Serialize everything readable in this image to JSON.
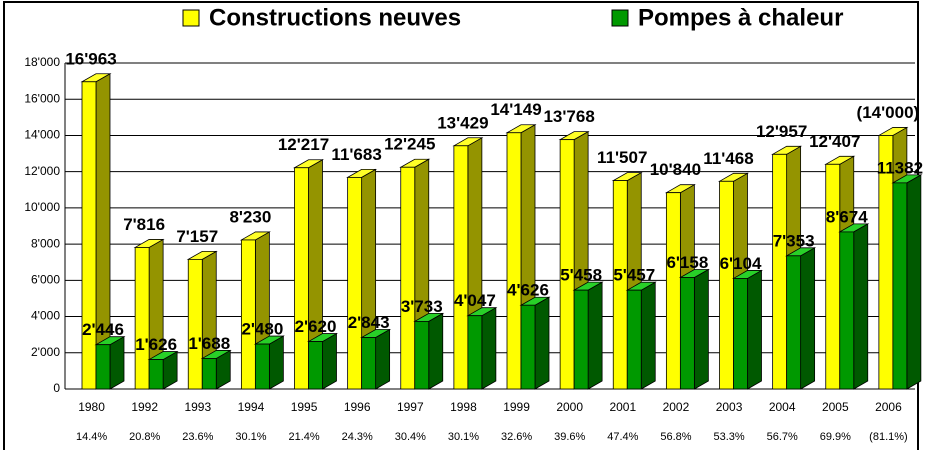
{
  "chart_data": {
    "type": "bar3d",
    "categories": [
      "1980",
      "1992",
      "1993",
      "1994",
      "1995",
      "1996",
      "1997",
      "1998",
      "1999",
      "2000",
      "2001",
      "2002",
      "2003",
      "2004",
      "2005",
      "2006"
    ],
    "shares": [
      "14.4%",
      "20.8%",
      "23.6%",
      "30.1%",
      "21.4%",
      "24.3%",
      "30.4%",
      "30.1%",
      "32.6%",
      "39.6%",
      "47.4%",
      "56.8%",
      "53.3%",
      "56.7%",
      "69.9%",
      "(81.1%)"
    ],
    "series": [
      {
        "name": "Constructions neuves",
        "color": "#ffff00",
        "values": [
          16963,
          7816,
          7157,
          8230,
          12217,
          11683,
          12245,
          13429,
          14149,
          13768,
          11507,
          10840,
          11468,
          12957,
          12407,
          14000
        ],
        "value_labels": [
          "16'963",
          "7'816",
          "7'157",
          "8'230",
          "12'217",
          "11'683",
          "12'245",
          "13'429",
          "14'149",
          "13'768",
          "11'507",
          "10'840",
          "11'468",
          "12'957",
          "12'407",
          "(14'000)"
        ]
      },
      {
        "name": "Pompes à chaleur",
        "color": "#009900",
        "values": [
          2446,
          1626,
          1688,
          2480,
          2620,
          2843,
          3733,
          4047,
          4626,
          5458,
          5457,
          6158,
          6104,
          7353,
          8674,
          11382
        ],
        "value_labels": [
          "2'446",
          "1'626",
          "1'688",
          "2'480",
          "2'620",
          "2'843",
          "3'733",
          "4'047",
          "4'626",
          "5'458",
          "5'457",
          "6'158",
          "6'104",
          "7'353",
          "8'674",
          "11382"
        ]
      }
    ],
    "ylim": [
      0,
      18000
    ],
    "yticks": [
      0,
      {
        "value": 2000,
        "label": "2'000"
      },
      {
        "value": 4000,
        "label": "4'000"
      },
      {
        "value": 6000,
        "label": "6'000"
      },
      {
        "value": 8000,
        "label": "8'000"
      },
      {
        "value": 10000,
        "label": "10'000"
      },
      {
        "value": 12000,
        "label": "12'000"
      },
      {
        "value": 14000,
        "label": "14'000"
      },
      {
        "value": 16000,
        "label": "16'000"
      },
      {
        "value": 18000,
        "label": "18'000"
      }
    ],
    "grid": true,
    "legend": "top"
  }
}
